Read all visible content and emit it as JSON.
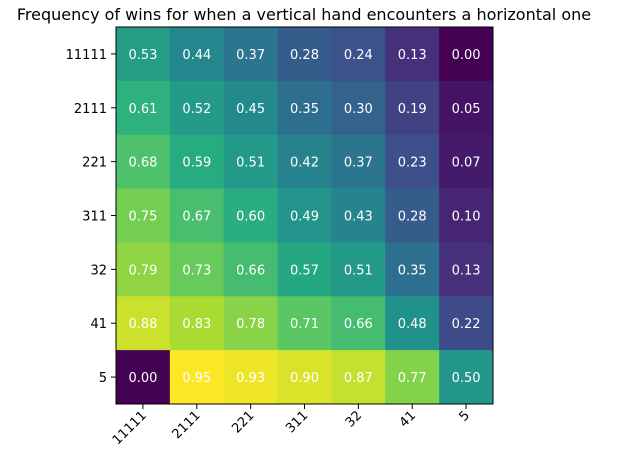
{
  "chart_data": {
    "type": "heatmap",
    "title": "Frequency of wins for when a vertical hand encounters a horizontal one",
    "xlabel": "",
    "ylabel": "",
    "x_categories": [
      "11111",
      "2111",
      "221",
      "311",
      "32",
      "41",
      "5"
    ],
    "y_categories": [
      "11111",
      "2111",
      "221",
      "311",
      "32",
      "41",
      "5"
    ],
    "values": [
      [
        0.53,
        0.44,
        0.37,
        0.28,
        0.24,
        0.13,
        0.0
      ],
      [
        0.61,
        0.52,
        0.45,
        0.35,
        0.3,
        0.19,
        0.05
      ],
      [
        0.68,
        0.59,
        0.51,
        0.42,
        0.37,
        0.23,
        0.07
      ],
      [
        0.75,
        0.67,
        0.6,
        0.49,
        0.43,
        0.28,
        0.1
      ],
      [
        0.79,
        0.73,
        0.66,
        0.57,
        0.51,
        0.35,
        0.13
      ],
      [
        0.88,
        0.83,
        0.78,
        0.71,
        0.66,
        0.48,
        0.22
      ],
      [
        0.0,
        0.95,
        0.93,
        0.9,
        0.87,
        0.77,
        0.5
      ]
    ],
    "value_format": "2 decimals",
    "colormap": "viridis",
    "vmin": 0.0,
    "vmax": 0.95,
    "x_tick_rotation_deg": 45,
    "grid": false,
    "legend": "none",
    "annotation_text_color": "#ffffff"
  }
}
